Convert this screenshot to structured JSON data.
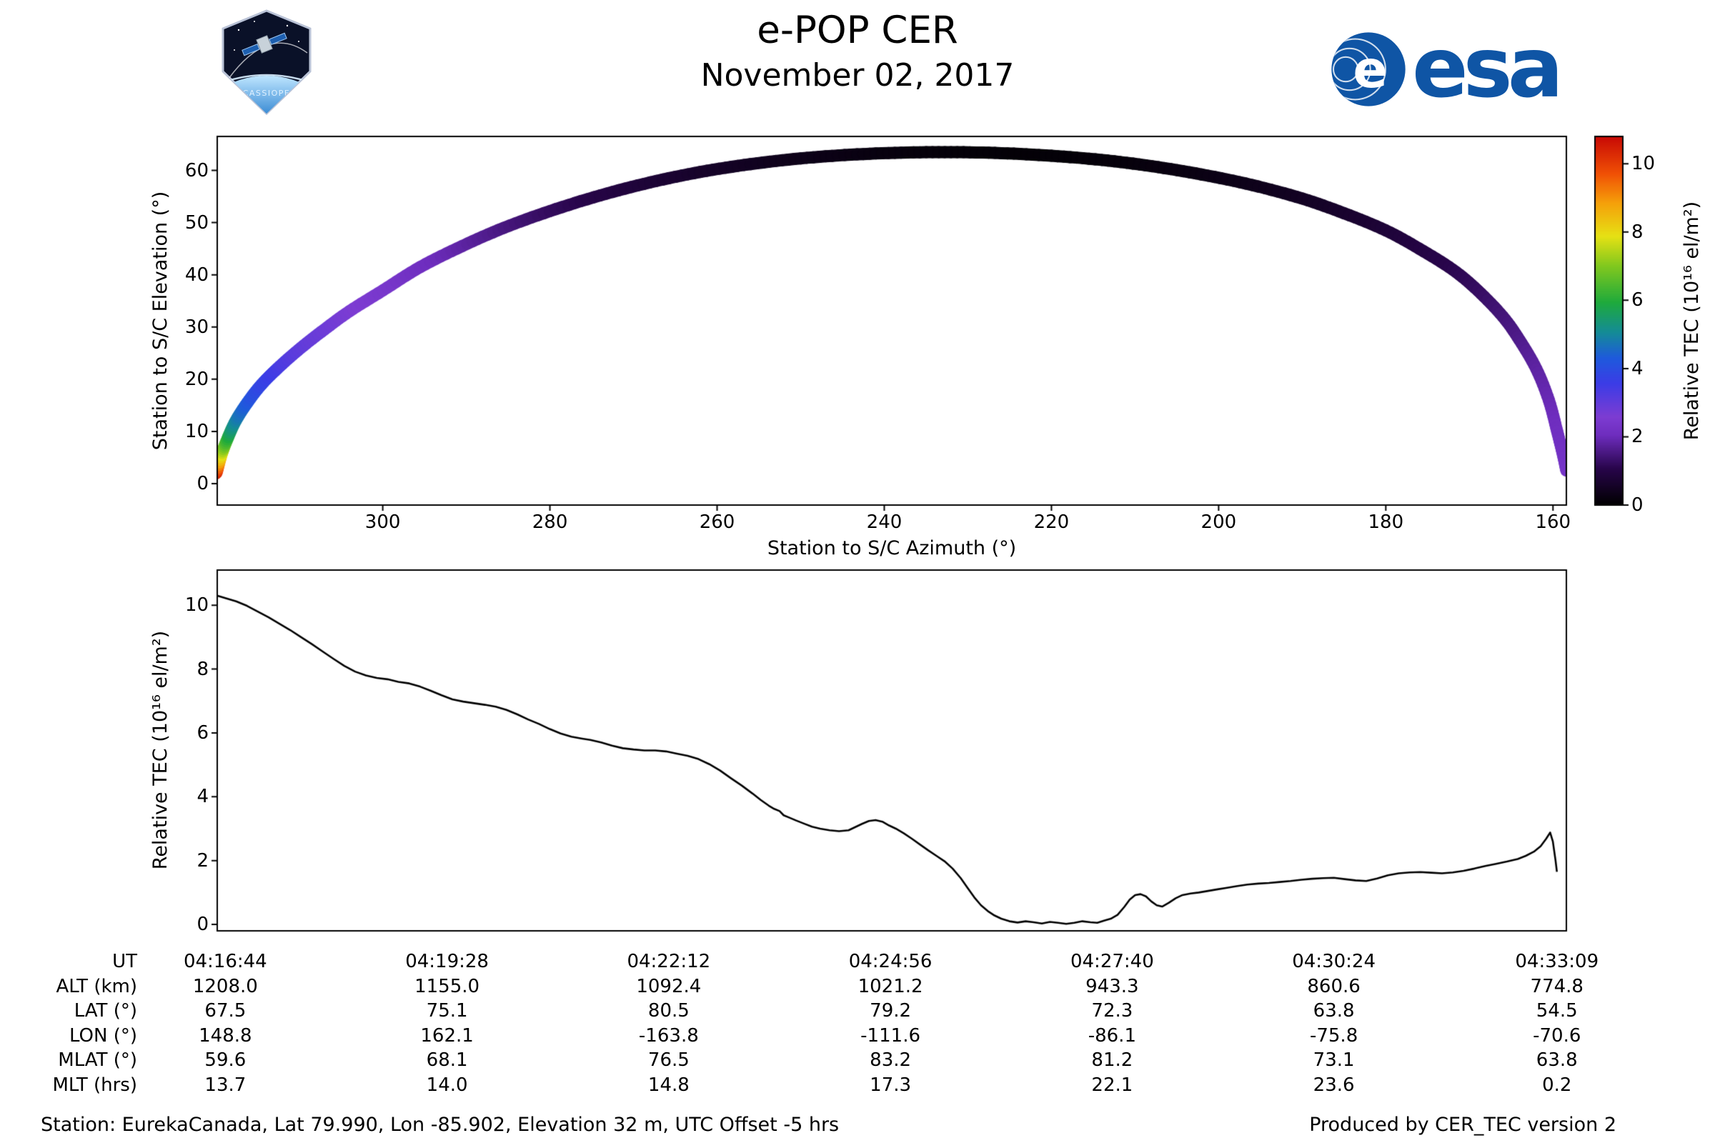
{
  "header": {
    "title": "e-POP CER",
    "date": "November 02, 2017",
    "esa_logo_text": "esa",
    "cassiope_patch_text": "CASSIOPE"
  },
  "footer": {
    "station_info": "Station: EurekaCanada, Lat 79.990, Lon -85.902, Elevation 32 m, UTC Offset -5 hrs",
    "produced_by": "Produced by CER_TEC version 2"
  },
  "colors": {
    "esa_blue": "#0f55a5",
    "line_color": "#000000",
    "axis_color": "#000000"
  },
  "chart_data": [
    {
      "type": "scatter",
      "name": "station-to-spacecraft-sky-track",
      "xlabel": "Station to S/C Azimuth (°)",
      "ylabel": "Station to S/C Elevation (°)",
      "xlim": [
        319.8,
        158.4
      ],
      "x_axis_reversed": true,
      "ylim": [
        -4.1,
        66.5
      ],
      "xticks": [
        300,
        280,
        260,
        240,
        220,
        200,
        180,
        160
      ],
      "yticks": [
        0,
        10,
        20,
        30,
        40,
        50,
        60
      ],
      "grid": false,
      "colorbar": {
        "label": "Relative TEC (10¹⁶ el/m²)",
        "ticks": [
          0,
          2,
          4,
          6,
          8,
          10
        ],
        "range": [
          0,
          10.8
        ],
        "stops": [
          [
            0.0,
            "#000000"
          ],
          [
            0.1,
            "#28054b"
          ],
          [
            0.19,
            "#6e2dbe"
          ],
          [
            0.24,
            "#7d3cd2"
          ],
          [
            0.33,
            "#3c3ce6"
          ],
          [
            0.4,
            "#1e5adc"
          ],
          [
            0.47,
            "#148c96"
          ],
          [
            0.55,
            "#1eaa3c"
          ],
          [
            0.65,
            "#82c81e"
          ],
          [
            0.73,
            "#e6e114"
          ],
          [
            0.82,
            "#f5a00a"
          ],
          [
            0.9,
            "#f05005"
          ],
          [
            1.0,
            "#c80a05"
          ]
        ]
      },
      "track_points_az_el_tec": [
        [
          319.9,
          2.0,
          10.5
        ],
        [
          319.3,
          5.5,
          8.0
        ],
        [
          318.6,
          8.5,
          6.2
        ],
        [
          317.6,
          12.0,
          5.0
        ],
        [
          316.2,
          15.5,
          4.3
        ],
        [
          314.5,
          19.0,
          3.8
        ],
        [
          312.3,
          22.5,
          3.4
        ],
        [
          309.8,
          26.0,
          3.05
        ],
        [
          307.0,
          29.5,
          2.85
        ],
        [
          304.0,
          33.0,
          2.65
        ],
        [
          300.0,
          37.0,
          2.45
        ],
        [
          295.5,
          41.5,
          2.15
        ],
        [
          290.5,
          45.5,
          1.85
        ],
        [
          285.5,
          49.0,
          1.55
        ],
        [
          280.0,
          52.2,
          1.25
        ],
        [
          274.0,
          55.2,
          1.0
        ],
        [
          268.0,
          57.7,
          0.8
        ],
        [
          262.0,
          59.7,
          0.62
        ],
        [
          256.0,
          61.2,
          0.48
        ],
        [
          250.0,
          62.3,
          0.36
        ],
        [
          244.0,
          63.0,
          0.27
        ],
        [
          238.0,
          63.4,
          0.2
        ],
        [
          232.0,
          63.5,
          0.14
        ],
        [
          226.0,
          63.3,
          0.11
        ],
        [
          220.0,
          62.8,
          0.11
        ],
        [
          214.0,
          62.0,
          0.14
        ],
        [
          208.0,
          60.8,
          0.2
        ],
        [
          202.0,
          59.2,
          0.27
        ],
        [
          196.0,
          57.2,
          0.37
        ],
        [
          190.0,
          54.6,
          0.5
        ],
        [
          185.0,
          51.8,
          0.64
        ],
        [
          180.0,
          48.5,
          0.8
        ],
        [
          176.0,
          45.0,
          0.95
        ],
        [
          172.0,
          41.0,
          1.1
        ],
        [
          169.0,
          37.0,
          1.25
        ],
        [
          166.0,
          32.0,
          1.45
        ],
        [
          164.0,
          27.5,
          1.6
        ],
        [
          162.0,
          22.0,
          1.8
        ],
        [
          160.5,
          16.0,
          1.95
        ],
        [
          159.5,
          10.0,
          2.1
        ],
        [
          158.8,
          5.5,
          2.2
        ],
        [
          158.4,
          2.5,
          2.3
        ]
      ]
    },
    {
      "type": "line",
      "name": "relative-tec-timeseries",
      "ylabel": "Relative TEC (10¹⁶ el/m²)",
      "ylim": [
        -0.2,
        11.1
      ],
      "yticks": [
        0,
        2,
        4,
        6,
        8,
        10
      ],
      "x_seconds_range": [
        0,
        985
      ],
      "axis_table": {
        "tick_seconds": [
          0,
          164,
          328,
          492,
          656,
          820,
          985
        ],
        "rows": [
          {
            "label": "UT",
            "values": [
              "04:16:44",
              "04:19:28",
              "04:22:12",
              "04:24:56",
              "04:27:40",
              "04:30:24",
              "04:33:09"
            ]
          },
          {
            "label": "ALT (km)",
            "values": [
              "1208.0",
              "1155.0",
              "1092.4",
              "1021.2",
              "943.3",
              "860.6",
              "774.8"
            ]
          },
          {
            "label": "LAT (°)",
            "values": [
              "67.5",
              "75.1",
              "80.5",
              "79.2",
              "72.3",
              "63.8",
              "54.5"
            ]
          },
          {
            "label": "LON (°)",
            "values": [
              "148.8",
              "162.1",
              "-163.8",
              "-111.6",
              "-86.1",
              "-75.8",
              "-70.6"
            ]
          },
          {
            "label": "MLAT (°)",
            "values": [
              "59.6",
              "68.1",
              "76.5",
              "83.2",
              "81.2",
              "73.1",
              "63.8"
            ]
          },
          {
            "label": "MLT (hrs)",
            "values": [
              "13.7",
              "14.0",
              "14.8",
              "17.3",
              "22.1",
              "23.6",
              "0.2"
            ]
          }
        ]
      },
      "points_t_tec": [
        [
          -6,
          10.3
        ],
        [
          0,
          10.22
        ],
        [
          8,
          10.12
        ],
        [
          16,
          9.98
        ],
        [
          24,
          9.8
        ],
        [
          32,
          9.62
        ],
        [
          40,
          9.42
        ],
        [
          48,
          9.22
        ],
        [
          56,
          9.0
        ],
        [
          64,
          8.78
        ],
        [
          72,
          8.55
        ],
        [
          80,
          8.32
        ],
        [
          88,
          8.1
        ],
        [
          96,
          7.92
        ],
        [
          104,
          7.8
        ],
        [
          112,
          7.72
        ],
        [
          120,
          7.68
        ],
        [
          128,
          7.6
        ],
        [
          136,
          7.55
        ],
        [
          144,
          7.45
        ],
        [
          152,
          7.32
        ],
        [
          160,
          7.18
        ],
        [
          168,
          7.05
        ],
        [
          176,
          6.98
        ],
        [
          184,
          6.93
        ],
        [
          192,
          6.88
        ],
        [
          200,
          6.82
        ],
        [
          208,
          6.72
        ],
        [
          216,
          6.58
        ],
        [
          224,
          6.42
        ],
        [
          232,
          6.28
        ],
        [
          240,
          6.12
        ],
        [
          248,
          5.98
        ],
        [
          256,
          5.88
        ],
        [
          264,
          5.82
        ],
        [
          270,
          5.78
        ],
        [
          278,
          5.7
        ],
        [
          286,
          5.6
        ],
        [
          294,
          5.52
        ],
        [
          302,
          5.48
        ],
        [
          310,
          5.45
        ],
        [
          318,
          5.45
        ],
        [
          326,
          5.42
        ],
        [
          334,
          5.35
        ],
        [
          342,
          5.28
        ],
        [
          350,
          5.18
        ],
        [
          358,
          5.02
        ],
        [
          366,
          4.82
        ],
        [
          374,
          4.58
        ],
        [
          382,
          4.35
        ],
        [
          390,
          4.1
        ],
        [
          396,
          3.9
        ],
        [
          402,
          3.72
        ],
        [
          406,
          3.62
        ],
        [
          410,
          3.55
        ],
        [
          413,
          3.42
        ],
        [
          417,
          3.35
        ],
        [
          422,
          3.26
        ],
        [
          428,
          3.16
        ],
        [
          434,
          3.06
        ],
        [
          440,
          3.0
        ],
        [
          447,
          2.95
        ],
        [
          454,
          2.92
        ],
        [
          461,
          2.95
        ],
        [
          466,
          3.05
        ],
        [
          471,
          3.15
        ],
        [
          476,
          3.24
        ],
        [
          481,
          3.27
        ],
        [
          486,
          3.22
        ],
        [
          491,
          3.1
        ],
        [
          496,
          3.0
        ],
        [
          502,
          2.85
        ],
        [
          508,
          2.68
        ],
        [
          514,
          2.5
        ],
        [
          520,
          2.32
        ],
        [
          526,
          2.15
        ],
        [
          532,
          1.98
        ],
        [
          538,
          1.75
        ],
        [
          544,
          1.45
        ],
        [
          549,
          1.15
        ],
        [
          554,
          0.85
        ],
        [
          559,
          0.6
        ],
        [
          564,
          0.42
        ],
        [
          569,
          0.28
        ],
        [
          574,
          0.18
        ],
        [
          580,
          0.1
        ],
        [
          586,
          0.06
        ],
        [
          592,
          0.1
        ],
        [
          598,
          0.07
        ],
        [
          604,
          0.03
        ],
        [
          610,
          0.08
        ],
        [
          616,
          0.05
        ],
        [
          622,
          0.02
        ],
        [
          628,
          0.05
        ],
        [
          634,
          0.1
        ],
        [
          640,
          0.07
        ],
        [
          645,
          0.05
        ],
        [
          650,
          0.12
        ],
        [
          655,
          0.18
        ],
        [
          660,
          0.3
        ],
        [
          665,
          0.55
        ],
        [
          669,
          0.78
        ],
        [
          673,
          0.92
        ],
        [
          677,
          0.95
        ],
        [
          681,
          0.88
        ],
        [
          685,
          0.72
        ],
        [
          689,
          0.6
        ],
        [
          693,
          0.56
        ],
        [
          698,
          0.68
        ],
        [
          703,
          0.82
        ],
        [
          708,
          0.92
        ],
        [
          714,
          0.97
        ],
        [
          720,
          1.0
        ],
        [
          727,
          1.05
        ],
        [
          734,
          1.1
        ],
        [
          741,
          1.15
        ],
        [
          748,
          1.2
        ],
        [
          756,
          1.25
        ],
        [
          764,
          1.28
        ],
        [
          772,
          1.3
        ],
        [
          780,
          1.33
        ],
        [
          788,
          1.36
        ],
        [
          796,
          1.4
        ],
        [
          804,
          1.43
        ],
        [
          812,
          1.45
        ],
        [
          820,
          1.46
        ],
        [
          828,
          1.42
        ],
        [
          836,
          1.38
        ],
        [
          844,
          1.36
        ],
        [
          852,
          1.44
        ],
        [
          860,
          1.54
        ],
        [
          868,
          1.6
        ],
        [
          876,
          1.63
        ],
        [
          884,
          1.64
        ],
        [
          892,
          1.62
        ],
        [
          900,
          1.6
        ],
        [
          908,
          1.63
        ],
        [
          916,
          1.68
        ],
        [
          924,
          1.75
        ],
        [
          932,
          1.83
        ],
        [
          940,
          1.9
        ],
        [
          948,
          1.97
        ],
        [
          956,
          2.05
        ],
        [
          962,
          2.15
        ],
        [
          968,
          2.28
        ],
        [
          973,
          2.45
        ],
        [
          977,
          2.68
        ],
        [
          980,
          2.88
        ],
        [
          982,
          2.6
        ],
        [
          984,
          2.0
        ],
        [
          985,
          1.65
        ]
      ]
    }
  ]
}
